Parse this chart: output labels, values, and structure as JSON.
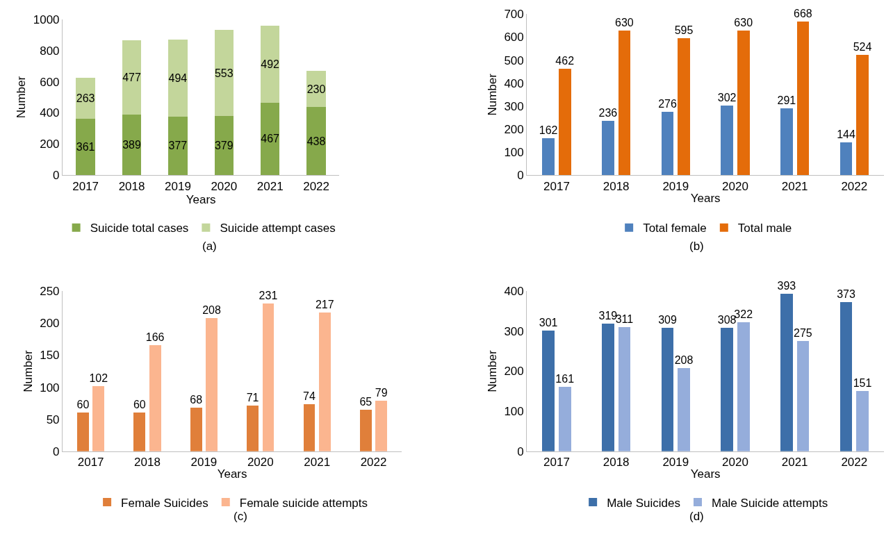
{
  "chart_data": [
    {
      "type": "bar",
      "stacked": true,
      "categories": [
        "2017",
        "2018",
        "2019",
        "2020",
        "2021",
        "2022"
      ],
      "xlabel": "Years",
      "ylabel": "Number",
      "ylim": [
        0,
        1000
      ],
      "yticks": [
        0,
        200,
        400,
        600,
        800,
        1000
      ],
      "legend": "bottom",
      "data_labels": true,
      "annotations": [
        "(a)"
      ],
      "series": [
        {
          "name": "Suicide total cases",
          "color": "#86a94b",
          "values": [
            361,
            389,
            377,
            379,
            467,
            438
          ]
        },
        {
          "name": "Suicide attempt cases",
          "color": "#c3d69b",
          "values": [
            263,
            477,
            494,
            553,
            492,
            230
          ]
        }
      ]
    },
    {
      "type": "bar",
      "categories": [
        "2017",
        "2018",
        "2019",
        "2020",
        "2021",
        "2022"
      ],
      "xlabel": "Years",
      "ylabel": "Number",
      "ylim": [
        0,
        700
      ],
      "yticks": [
        0,
        100,
        200,
        300,
        400,
        500,
        600,
        700
      ],
      "legend": "bottom",
      "data_labels": true,
      "annotations": [
        "(b)"
      ],
      "series": [
        {
          "name": "Total female",
          "color": "#4f81bd",
          "values": [
            162,
            236,
            276,
            302,
            291,
            144
          ]
        },
        {
          "name": "Total male",
          "color": "#e46c0a",
          "values": [
            462,
            630,
            595,
            630,
            668,
            524
          ]
        }
      ]
    },
    {
      "type": "bar",
      "categories": [
        "2017",
        "2018",
        "2019",
        "2020",
        "2021",
        "2022"
      ],
      "xlabel": "Years",
      "ylabel": "Number",
      "ylim": [
        0,
        250
      ],
      "yticks": [
        0,
        50,
        100,
        150,
        200,
        250
      ],
      "legend": "bottom",
      "data_labels": true,
      "annotations": [
        "(c)"
      ],
      "series": [
        {
          "name": "Female Suicides",
          "color": "#e07f3a",
          "values": [
            60,
            60,
            68,
            71,
            74,
            65
          ]
        },
        {
          "name": "Female suicide attempts",
          "color": "#fbb58f",
          "values": [
            102,
            166,
            208,
            231,
            217,
            79
          ]
        }
      ]
    },
    {
      "type": "bar",
      "categories": [
        "2017",
        "2018",
        "2019",
        "2020",
        "2021",
        "2022"
      ],
      "xlabel": "Years",
      "ylabel": "Number",
      "ylim": [
        0,
        400
      ],
      "yticks": [
        0,
        100,
        200,
        300,
        400
      ],
      "legend": "bottom",
      "data_labels": true,
      "annotations": [
        "(d)"
      ],
      "series": [
        {
          "name": "Male Suicides",
          "color": "#3d6fa9",
          "values": [
            301,
            319,
            309,
            308,
            393,
            373
          ]
        },
        {
          "name": "Male Suicide attempts",
          "color": "#95addb",
          "values": [
            161,
            311,
            208,
            322,
            275,
            151
          ]
        }
      ]
    }
  ]
}
